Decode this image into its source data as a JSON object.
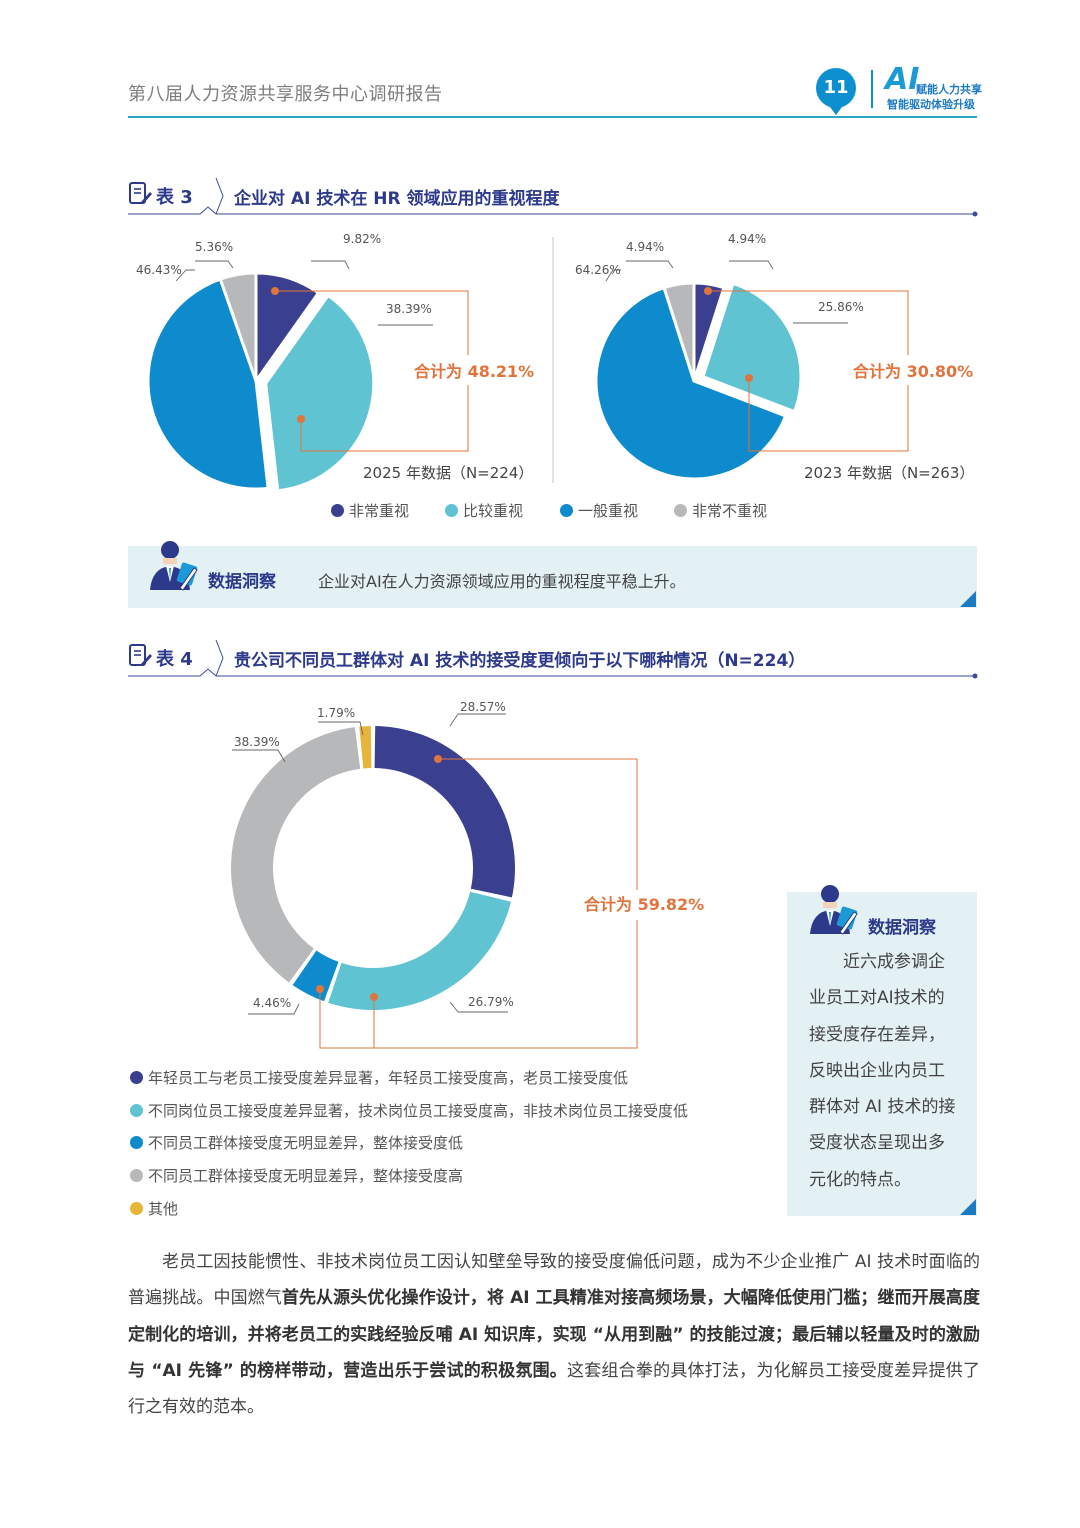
{
  "header": {
    "title": "第八届人力资源共享服务中心调研报告",
    "page_number": "11",
    "brand_ai": "AI",
    "brand_line1": "赋能人力共享",
    "brand_line2": "智能驱动体验升级"
  },
  "table3": {
    "label": "表 3",
    "title": "企业对 AI 技术在 HR 领域应用的重视程度",
    "sum_2025": "合计为 48.21%",
    "sum_2023": "合计为 30.80%",
    "caption_2025": "2025 年数据（N=224）",
    "caption_2023": "2023 年数据（N=263）",
    "pct_2025": [
      "9.82%",
      "38.39%",
      "46.43%",
      "5.36%"
    ],
    "pct_2023": [
      "4.94%",
      "25.86%",
      "64.26%",
      "4.94%"
    ],
    "legend": [
      "非常重视",
      "比较重视",
      "一般重视",
      "非常不重视"
    ]
  },
  "insight1": {
    "title": "数据洞察",
    "text": "企业对AI在人力资源领域应用的重视程度平稳上升。"
  },
  "table4": {
    "label": "表 4",
    "title": "贵公司不同员工群体对 AI 技术的接受度更倾向于以下哪种情况（N=224）",
    "sum": "合计为 59.82%",
    "pct": [
      "28.57%",
      "26.79%",
      "4.46%",
      "38.39%",
      "1.79%"
    ],
    "legend": [
      "年轻员工与老员工接受度差异显著，年轻员工接受度高，老员工接受度低",
      "不同岗位员工接受度差异显著，技术岗位员工接受度高，非技术岗位员工接受度低",
      "不同员工群体接受度无明显差异，整体接受度低",
      "不同员工群体接受度无明显差异，整体接受度高",
      "其他"
    ]
  },
  "insight2": {
    "title": "数据洞察",
    "text": "近六成参调企业员工对AI技术的接受度存在差异，反映出企业内员工群体对 AI 技术的接受度状态呈现出多元化的特点。"
  },
  "paragraph": {
    "p1": "老员工因技能惯性、非技术岗位员工因认知壁垒导致的接受度偏低问题，成为不少企业推广 AI 技术时面临的普遍挑战。中国燃气",
    "b1": "首先从源头优化操作设计，将 AI 工具精准对接高频场景，大幅降低使用门槛；继而开展高度定制化的培训，并将老员工的实践经验反哺 AI 知识库，实现 “从用到融” 的技能过渡；最后辅以轻量及时的激励与 “AI 先锋” 的榜样带动，营造出乐于尝试的积极氛围。",
    "p2": "这套组合拳的具体打法，为化解员工接受度差异提供了行之有效的范本。"
  },
  "colors": {
    "dark_blue": "#3a3f8f",
    "teal": "#5fc3d2",
    "blue": "#0d8bcd",
    "gray": "#b7b8ba",
    "yellow": "#e7b53a",
    "accent_orange": "#e0743c",
    "brand_blue": "#0d8fcf"
  },
  "chart_data": [
    {
      "type": "pie",
      "caption": "2025 年数据（N=224）",
      "categories": [
        "非常重视",
        "比较重视",
        "一般重视",
        "非常不重视"
      ],
      "values": [
        9.82,
        38.39,
        46.43,
        5.36
      ],
      "annotation": "合计为 48.21%"
    },
    {
      "type": "pie",
      "caption": "2023 年数据（N=263）",
      "categories": [
        "非常重视",
        "比较重视",
        "一般重视",
        "非常不重视"
      ],
      "values": [
        4.94,
        25.86,
        64.26,
        4.94
      ],
      "annotation": "合计为 30.80%"
    },
    {
      "type": "pie",
      "title": "贵公司不同员工群体对 AI 技术的接受度更倾向于以下哪种情况（N=224）",
      "categories": [
        "年轻员工与老员工接受度差异显著，年轻员工接受度高，老员工接受度低",
        "不同岗位员工接受度差异显著，技术岗位员工接受度高，非技术岗位员工接受度低",
        "不同员工群体接受度无明显差异，整体接受度低",
        "不同员工群体接受度无明显差异，整体接受度高",
        "其他"
      ],
      "values": [
        28.57,
        26.79,
        4.46,
        38.39,
        1.79
      ],
      "annotation": "合计为 59.82%"
    }
  ]
}
